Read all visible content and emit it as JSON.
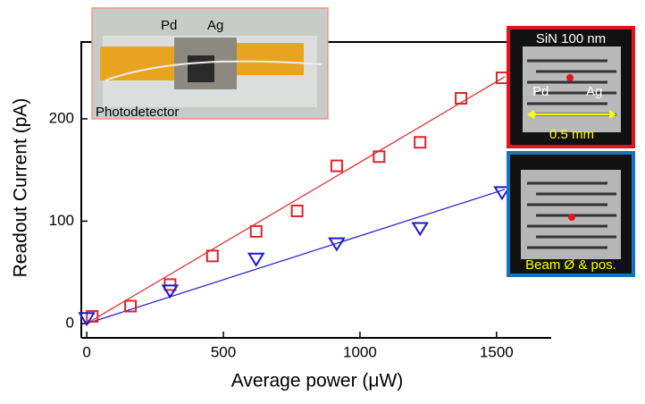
{
  "chart_data": {
    "type": "scatter",
    "x_label": "Average power (μW)",
    "y_label": "Readout Current  (pA)",
    "xlim": [
      -20,
      1700
    ],
    "ylim": [
      -14,
      275
    ],
    "xticks": [
      0,
      500,
      1000,
      1500
    ],
    "yticks": [
      0,
      100,
      200
    ],
    "series": [
      {
        "color": "#e0242b",
        "marker": "square",
        "x": [
          20,
          160,
          305,
          460,
          620,
          770,
          915,
          1070,
          1220,
          1370,
          1520
        ],
        "values": [
          7,
          17,
          38,
          66,
          90,
          110,
          154,
          163,
          177,
          220,
          240
        ]
      },
      {
        "color": "#1a1ad0",
        "marker": "triangle",
        "x": [
          0,
          305,
          620,
          915,
          1220,
          1520
        ],
        "values": [
          5,
          32,
          63,
          78,
          93,
          128
        ]
      }
    ],
    "fits": [
      {
        "color": "#e0242b",
        "x": [
          0,
          1530
        ],
        "values": [
          0,
          241
        ]
      },
      {
        "color": "#1a1ad0",
        "x": [
          0,
          1530
        ],
        "values": [
          0,
          131
        ]
      }
    ],
    "annotations": [
      "Pd",
      "Ag",
      "Photodetector",
      "SiN 100 nm",
      "Pd",
      "Ag",
      "0.5 mm",
      "Beam Ø & pos."
    ]
  }
}
